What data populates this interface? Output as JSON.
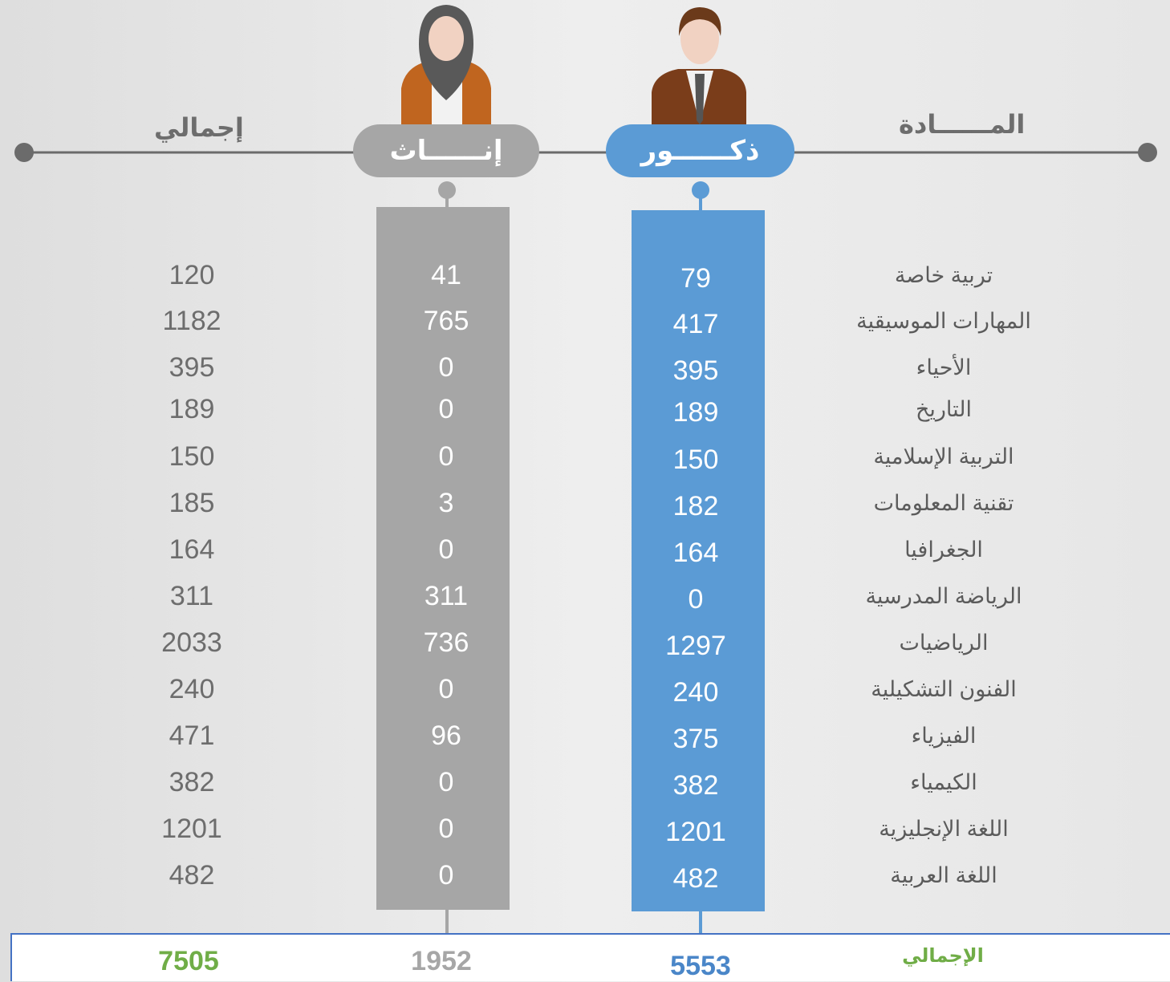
{
  "header": {
    "subject": "المــــــادة",
    "male": "ذكــــــور",
    "female": "إنــــــاث",
    "total": "إجمالي"
  },
  "rows": [
    {
      "subject": "تربية خاصة",
      "male": 79,
      "female": 41,
      "total": 120
    },
    {
      "subject": "المهارات الموسيقية",
      "male": 417,
      "female": 765,
      "total": 1182
    },
    {
      "subject": "الأحياء",
      "male": 395,
      "female": 0,
      "total": 395
    },
    {
      "subject": "التاريخ",
      "male": 189,
      "female": 0,
      "total": 189
    },
    {
      "subject": "التربية الإسلامية",
      "male": 150,
      "female": 0,
      "total": 150
    },
    {
      "subject": "تقنية المعلومات",
      "male": 182,
      "female": 3,
      "total": 185
    },
    {
      "subject": "الجغرافيا",
      "male": 164,
      "female": 0,
      "total": 164
    },
    {
      "subject": "الرياضة المدرسية",
      "male": 0,
      "female": 311,
      "total": 311
    },
    {
      "subject": "الرياضيات",
      "male": 1297,
      "female": 736,
      "total": 2033
    },
    {
      "subject": "الفنون التشكيلية",
      "male": 240,
      "female": 0,
      "total": 240
    },
    {
      "subject": "الفيزياء",
      "male": 375,
      "female": 96,
      "total": 471
    },
    {
      "subject": "الكيمياء",
      "male": 382,
      "female": 0,
      "total": 382
    },
    {
      "subject": "اللغة الإنجليزية",
      "male": 1201,
      "female": 0,
      "total": 1201
    },
    {
      "subject": "اللغة العربية",
      "male": 482,
      "female": 0,
      "total": 482
    }
  ],
  "totals": {
    "label": "الإجمالي",
    "male": 5553,
    "female": 1952,
    "total": 7505
  }
}
